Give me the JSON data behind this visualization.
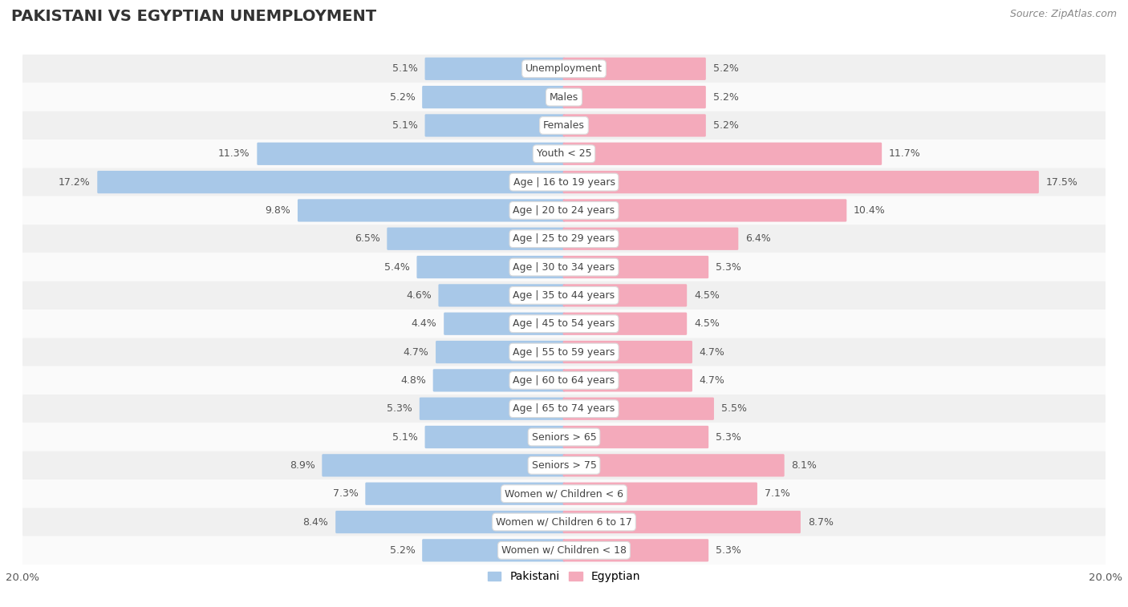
{
  "title": "PAKISTANI VS EGYPTIAN UNEMPLOYMENT",
  "source": "Source: ZipAtlas.com",
  "categories": [
    "Unemployment",
    "Males",
    "Females",
    "Youth < 25",
    "Age | 16 to 19 years",
    "Age | 20 to 24 years",
    "Age | 25 to 29 years",
    "Age | 30 to 34 years",
    "Age | 35 to 44 years",
    "Age | 45 to 54 years",
    "Age | 55 to 59 years",
    "Age | 60 to 64 years",
    "Age | 65 to 74 years",
    "Seniors > 65",
    "Seniors > 75",
    "Women w/ Children < 6",
    "Women w/ Children 6 to 17",
    "Women w/ Children < 18"
  ],
  "pakistani": [
    5.1,
    5.2,
    5.1,
    11.3,
    17.2,
    9.8,
    6.5,
    5.4,
    4.6,
    4.4,
    4.7,
    4.8,
    5.3,
    5.1,
    8.9,
    7.3,
    8.4,
    5.2
  ],
  "egyptian": [
    5.2,
    5.2,
    5.2,
    11.7,
    17.5,
    10.4,
    6.4,
    5.3,
    4.5,
    4.5,
    4.7,
    4.7,
    5.5,
    5.3,
    8.1,
    7.1,
    8.7,
    5.3
  ],
  "pakistani_color": "#A8C8E8",
  "egyptian_color": "#F4AABB",
  "background_color": "#ffffff",
  "row_colors": [
    "#f0f0f0",
    "#fafafa"
  ],
  "max_val": 20.0,
  "label_fontsize": 9.0,
  "title_fontsize": 14,
  "source_fontsize": 9,
  "legend_fontsize": 10,
  "bar_height": 0.72
}
